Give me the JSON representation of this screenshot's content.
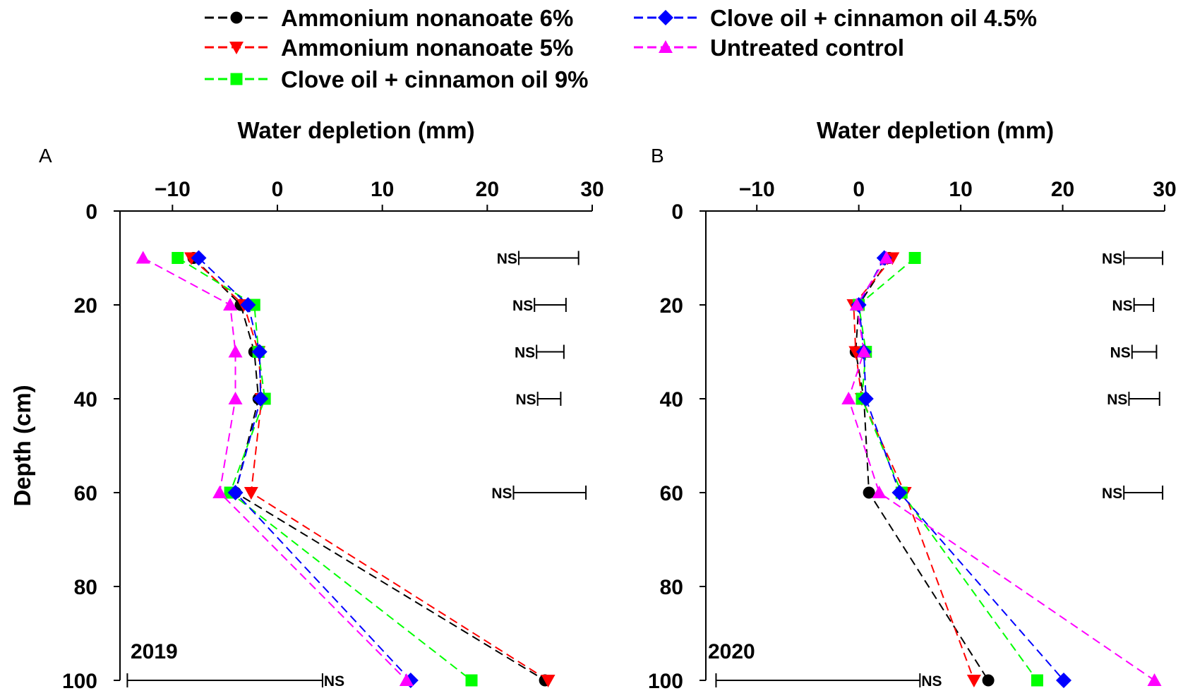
{
  "legend": [
    {
      "label": "Ammonium nonanoate 6%",
      "color": "#000000",
      "marker": "circle"
    },
    {
      "label": "Ammonium nonanoate 5%",
      "color": "#ff0000",
      "marker": "triangle-down"
    },
    {
      "label": "Clove oil + cinnamon oil 9%",
      "color": "#00ff00",
      "marker": "square"
    },
    {
      "label": "Clove oil + cinnamon oil 4.5%",
      "color": "#0000ff",
      "marker": "diamond"
    },
    {
      "label": "Untreated control",
      "color": "#ff00ff",
      "marker": "triangle-up"
    }
  ],
  "chart_data": [
    {
      "type": "line",
      "panel_label": "A",
      "year_label": "2019",
      "xlabel": "Water depletion (mm)",
      "ylabel": "Depth (cm)",
      "xlim": [
        -15,
        30
      ],
      "ylim": [
        0,
        100
      ],
      "x_ticks": [
        -10,
        0,
        10,
        20,
        30
      ],
      "x_tick_labels": [
        "−10",
        "0",
        "10",
        "20",
        "30"
      ],
      "y_ticks": [
        0,
        20,
        40,
        60,
        80,
        100
      ],
      "y_tick_labels": [
        "0",
        "20",
        "40",
        "60",
        "80",
        "100"
      ],
      "depths": [
        10,
        20,
        30,
        40,
        60,
        100
      ],
      "series": [
        {
          "name": "Ammonium nonanoate 6%",
          "values": [
            -8,
            -3.5,
            -2.2,
            -1.8,
            -4,
            25.5
          ]
        },
        {
          "name": "Ammonium nonanoate 5%",
          "values": [
            -8.2,
            -3.2,
            -1.8,
            -1.5,
            -2.5,
            25.8
          ]
        },
        {
          "name": "Clove oil + cinnamon oil 9%",
          "values": [
            -9.5,
            -2.2,
            -1.8,
            -1.2,
            -4.5,
            18.5
          ]
        },
        {
          "name": "Clove oil + cinnamon oil 4.5%",
          "values": [
            -7.5,
            -2.8,
            -1.7,
            -1.6,
            -4,
            12.7
          ]
        },
        {
          "name": "Untreated control",
          "values": [
            -12.8,
            -4.5,
            -4,
            -4,
            -5.5,
            12.3
          ]
        }
      ],
      "error_bars": [
        {
          "label": "NS",
          "depth": 10,
          "x_start": 23,
          "x_end": 28.7
        },
        {
          "label": "NS",
          "depth": 20,
          "x_start": 24.5,
          "x_end": 27.5
        },
        {
          "label": "NS",
          "depth": 30,
          "x_start": 24.7,
          "x_end": 27.3
        },
        {
          "label": "NS",
          "depth": 40,
          "x_start": 24.8,
          "x_end": 27
        },
        {
          "label": "NS",
          "depth": 60,
          "x_start": 22.5,
          "x_end": 29.4
        },
        {
          "label": "NS",
          "depth": 100,
          "x_start": -14.3,
          "x_end": 4.3
        }
      ]
    },
    {
      "type": "line",
      "panel_label": "B",
      "year_label": "2020",
      "xlabel": "Water depletion (mm)",
      "ylabel": "",
      "xlim": [
        -15,
        30
      ],
      "ylim": [
        0,
        100
      ],
      "x_ticks": [
        -10,
        0,
        10,
        20,
        30
      ],
      "x_tick_labels": [
        "−10",
        "0",
        "10",
        "20",
        "30"
      ],
      "y_ticks": [
        0,
        20,
        40,
        60,
        80,
        100
      ],
      "y_tick_labels": [
        "0",
        "20",
        "40",
        "60",
        "80",
        "100"
      ],
      "depths": [
        10,
        20,
        30,
        40,
        60,
        100
      ],
      "series": [
        {
          "name": "Ammonium nonanoate 6%",
          "values": [
            3,
            0,
            -0.3,
            0.5,
            1,
            12.7
          ]
        },
        {
          "name": "Ammonium nonanoate 5%",
          "values": [
            3.3,
            -0.5,
            -0.3,
            0.3,
            4.5,
            11.3
          ]
        },
        {
          "name": "Clove oil + cinnamon oil 9%",
          "values": [
            5.5,
            0,
            0.7,
            0.3,
            4.2,
            17.5
          ]
        },
        {
          "name": "Clove oil + cinnamon oil 4.5%",
          "values": [
            2.5,
            0,
            0.5,
            0.7,
            4,
            20.1
          ]
        },
        {
          "name": "Untreated control",
          "values": [
            2.7,
            -0.2,
            0.5,
            -1,
            2,
            29
          ]
        }
      ],
      "error_bars": [
        {
          "label": "NS",
          "depth": 10,
          "x_start": 26,
          "x_end": 29.8
        },
        {
          "label": "NS",
          "depth": 20,
          "x_start": 27,
          "x_end": 28.9
        },
        {
          "label": "NS",
          "depth": 30,
          "x_start": 26.8,
          "x_end": 29.2
        },
        {
          "label": "NS",
          "depth": 40,
          "x_start": 26.5,
          "x_end": 29.5
        },
        {
          "label": "NS",
          "depth": 60,
          "x_start": 26,
          "x_end": 29.8
        },
        {
          "label": "NS",
          "depth": 100,
          "x_start": -14,
          "x_end": 6
        }
      ]
    }
  ]
}
